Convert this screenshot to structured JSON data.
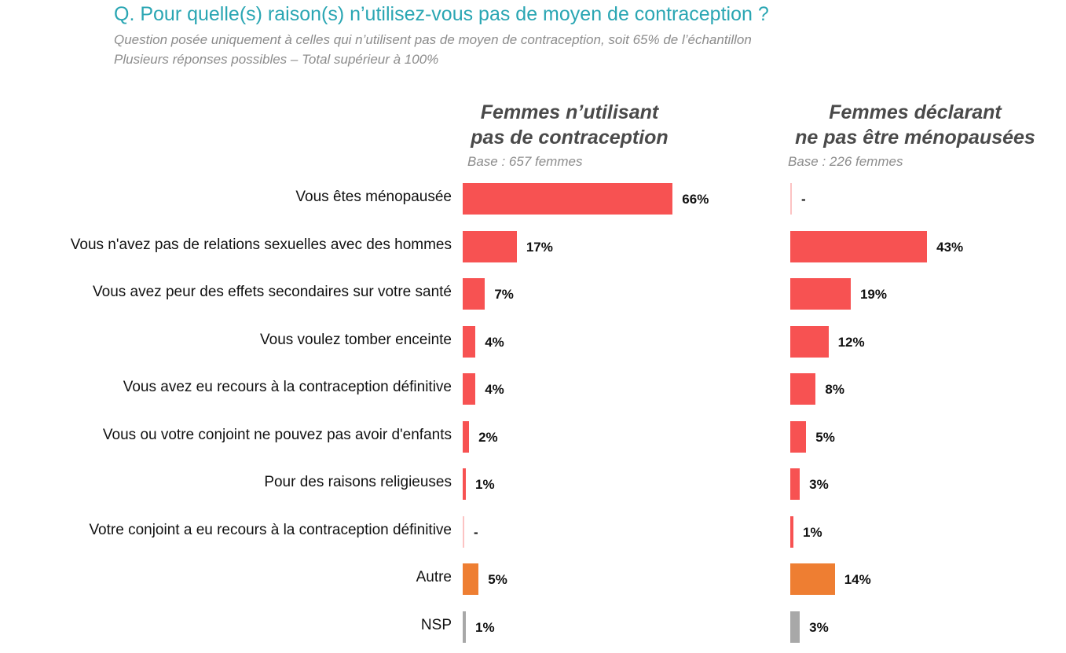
{
  "title": "Q. Pour quelle(s) raison(s) n’utilisez-vous pas de moyen de contraception ?",
  "subtitle_lines": [
    "Question posée uniquement à celles qui n’utilisent pas de moyen de contraception, soit 65% de l’échantillon",
    "Plusieurs réponses possibles – Total supérieur à 100%"
  ],
  "colors": {
    "title": "#2aa6b3",
    "main": "#f75252",
    "autre": "#ee7e32",
    "nsp": "#a8a8a8"
  },
  "chart_data": {
    "type": "bar",
    "orientation": "horizontal",
    "unit": "%",
    "categories": [
      "Vous êtes ménopausée",
      "Vous n'avez pas de relations sexuelles avec des hommes",
      "Vous avez peur des effets secondaires sur votre santé",
      "Vous voulez tomber enceinte",
      "Vous avez eu recours à la contraception définitive",
      "Vous ou votre conjoint ne pouvez pas avoir d'enfants",
      "Pour des raisons religieuses",
      "Votre conjoint a eu recours à la contraception définitive",
      "Autre",
      "NSP"
    ],
    "category_colors": [
      "main",
      "main",
      "main",
      "main",
      "main",
      "main",
      "main",
      "main",
      "autre",
      "nsp"
    ],
    "series": [
      {
        "name_lines": [
          "Femmes n’utilisant",
          "pas de contraception"
        ],
        "base": "Base : 657 femmes",
        "values": [
          66,
          17,
          7,
          4,
          4,
          2,
          1,
          0,
          5,
          1
        ],
        "labels": [
          "66%",
          "17%",
          "7%",
          "4%",
          "4%",
          "2%",
          "1%",
          "-",
          "5%",
          "1%"
        ]
      },
      {
        "name_lines": [
          "Femmes déclarant",
          "ne pas être ménopausées"
        ],
        "base": "Base : 226 femmes",
        "values": [
          0,
          43,
          19,
          12,
          8,
          5,
          3,
          1,
          14,
          3
        ],
        "labels": [
          "-",
          "43%",
          "19%",
          "12%",
          "8%",
          "5%",
          "3%",
          "1%",
          "14%",
          "3%"
        ]
      }
    ]
  }
}
